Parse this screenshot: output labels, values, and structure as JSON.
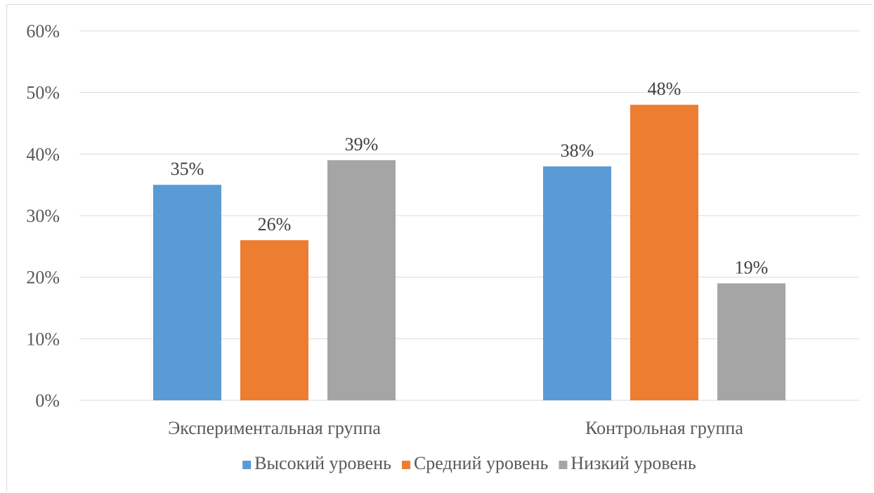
{
  "chart_data": {
    "type": "bar",
    "categories": [
      "Экспериментальная группа",
      "Контрольная группа"
    ],
    "series": [
      {
        "name": "Высокий уровень",
        "values": [
          35,
          38
        ],
        "color": "#5b9bd5"
      },
      {
        "name": "Средний уровень",
        "values": [
          26,
          48
        ],
        "color": "#ed7d31"
      },
      {
        "name": "Низкий уровень",
        "values": [
          39,
          19
        ],
        "color": "#a5a5a5"
      }
    ],
    "value_labels": [
      [
        "35%",
        "38%"
      ],
      [
        "26%",
        "48%"
      ],
      [
        "39%",
        "19%"
      ]
    ],
    "title": "",
    "xlabel": "",
    "ylabel": "",
    "ylim": [
      0,
      60
    ],
    "yticks": [
      0,
      10,
      20,
      30,
      40,
      50,
      60
    ],
    "ytick_labels": [
      "0%",
      "10%",
      "20%",
      "30%",
      "40%",
      "50%",
      "60%"
    ],
    "grid": true,
    "gridline_color": "#d9d9d9",
    "legend_position": "bottom"
  }
}
